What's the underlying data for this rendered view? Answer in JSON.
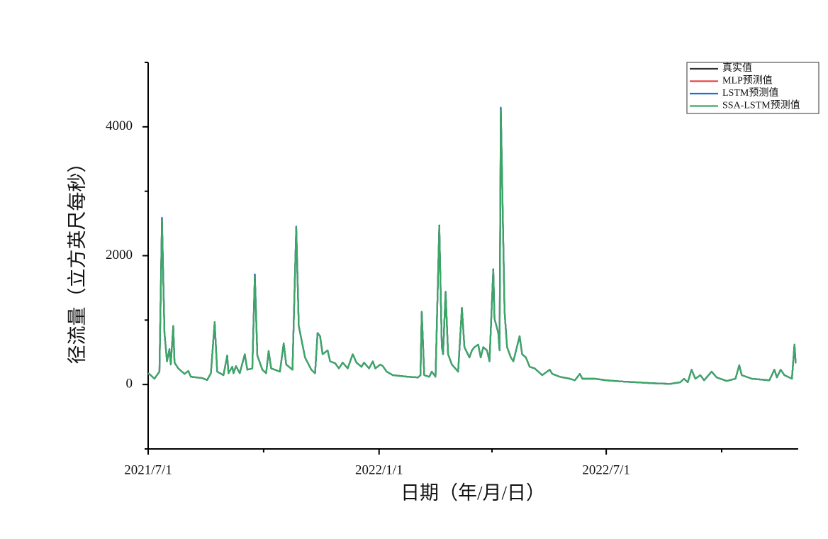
{
  "chart_data": {
    "type": "line",
    "x_label": "日期（年/月/日）",
    "y_label": "径流量（立方英尺每秒）",
    "x": [
      "2021/7/1",
      "2021/7/3",
      "2021/7/6",
      "2021/7/8",
      "2021/7/10",
      "2021/7/12",
      "2021/7/14",
      "2021/7/16",
      "2021/7/18",
      "2021/7/19",
      "2021/7/21",
      "2021/7/22",
      "2021/7/25",
      "2021/7/30",
      "2021/8/2",
      "2021/8/4",
      "2021/8/13",
      "2021/8/17",
      "2021/8/20",
      "2021/8/23",
      "2021/8/25",
      "2021/8/30",
      "2021/9/2",
      "2021/9/3",
      "2021/9/6",
      "2021/9/7",
      "2021/9/9",
      "2021/9/12",
      "2021/9/16",
      "2021/9/18",
      "2021/9/22",
      "2021/9/24",
      "2021/9/26",
      "2021/9/30",
      "2021/10/3",
      "2021/10/5",
      "2021/10/7",
      "2021/10/14",
      "2021/10/17",
      "2021/10/19",
      "2021/10/24",
      "2021/10/27",
      "2021/10/29",
      "2021/11/3",
      "2021/11/8",
      "2021/11/11",
      "2021/11/13",
      "2021/11/15",
      "2021/11/17",
      "2021/11/21",
      "2021/11/23",
      "2021/11/27",
      "2021/11/30",
      "2021/12/3",
      "2021/12/7",
      "2021/12/11",
      "2021/12/14",
      "2021/12/18",
      "2021/12/20",
      "2021/12/24",
      "2021/12/27",
      "2021/12/29",
      "2022/1/2",
      "2022/1/4",
      "2022/1/7",
      "2022/1/12",
      "2022/1/24",
      "2022/2/1",
      "2022/2/3",
      "2022/2/4",
      "2022/2/6",
      "2022/2/10",
      "2022/2/12",
      "2022/2/15",
      "2022/2/18",
      "2022/2/20",
      "2022/2/21",
      "2022/2/23",
      "2022/2/25",
      "2022/2/28",
      "2022/3/5",
      "2022/3/8",
      "2022/3/10",
      "2022/3/14",
      "2022/3/16",
      "2022/3/18",
      "2022/3/21",
      "2022/3/23",
      "2022/3/25",
      "2022/3/28",
      "2022/3/30",
      "2022/4/2",
      "2022/4/3",
      "2022/4/6",
      "2022/4/7",
      "2022/4/8",
      "2022/4/11",
      "2022/4/13",
      "2022/4/16",
      "2022/4/18",
      "2022/4/23",
      "2022/4/25",
      "2022/4/28",
      "2022/5/1",
      "2022/5/5",
      "2022/5/11",
      "2022/5/17",
      "2022/5/19",
      "2022/5/25",
      "2022/6/2",
      "2022/6/6",
      "2022/6/10",
      "2022/6/12",
      "2022/6/22",
      "2022/7/1",
      "2022/7/15",
      "2022/8/7",
      "2022/8/21",
      "2022/8/29",
      "2022/9/1",
      "2022/9/4",
      "2022/9/7",
      "2022/9/10",
      "2022/9/14",
      "2022/9/17",
      "2022/9/23",
      "2022/9/27",
      "2022/10/5",
      "2022/10/12",
      "2022/10/15",
      "2022/10/17",
      "2022/10/25",
      "2022/11/8",
      "2022/11/12",
      "2022/11/14",
      "2022/11/17",
      "2022/11/20",
      "2022/11/26",
      "2022/11/28",
      "2022/11/29"
    ],
    "series": [
      {
        "name": "真实值",
        "color": "#333333",
        "values": [
          175,
          145,
          90,
          145,
          200,
          2580,
          800,
          360,
          550,
          310,
          910,
          340,
          250,
          165,
          210,
          120,
          100,
          70,
          175,
          970,
          200,
          145,
          450,
          175,
          275,
          175,
          285,
          175,
          470,
          230,
          250,
          1710,
          450,
          230,
          175,
          520,
          250,
          200,
          640,
          310,
          230,
          2450,
          910,
          420,
          230,
          175,
          800,
          750,
          470,
          530,
          360,
          330,
          250,
          340,
          250,
          470,
          340,
          275,
          340,
          250,
          360,
          250,
          310,
          285,
          200,
          145,
          120,
          110,
          145,
          1130,
          145,
          120,
          200,
          120,
          2470,
          580,
          470,
          1440,
          470,
          310,
          200,
          1190,
          580,
          420,
          530,
          580,
          620,
          420,
          580,
          530,
          360,
          1790,
          1020,
          800,
          530,
          4290,
          1130,
          580,
          420,
          360,
          750,
          470,
          420,
          275,
          250,
          145,
          230,
          165,
          120,
          90,
          65,
          165,
          90,
          90,
          65,
          45,
          20,
          10,
          35,
          90,
          35,
          230,
          90,
          145,
          65,
          200,
          110,
          55,
          90,
          300,
          145,
          90,
          65,
          230,
          110,
          230,
          145,
          90,
          620,
          330
        ]
      },
      {
        "name": "MLP预测值",
        "color": "#e8413a",
        "values": [
          175,
          145,
          90,
          145,
          200,
          2570,
          800,
          360,
          550,
          310,
          910,
          340,
          250,
          165,
          210,
          120,
          100,
          70,
          175,
          970,
          200,
          145,
          450,
          175,
          275,
          175,
          285,
          175,
          470,
          230,
          250,
          1710,
          450,
          230,
          175,
          520,
          250,
          200,
          640,
          310,
          230,
          2450,
          910,
          420,
          230,
          175,
          800,
          750,
          470,
          530,
          360,
          330,
          250,
          340,
          250,
          470,
          340,
          275,
          340,
          250,
          360,
          250,
          310,
          285,
          200,
          145,
          120,
          110,
          145,
          1130,
          145,
          120,
          200,
          120,
          2470,
          580,
          470,
          1440,
          470,
          310,
          200,
          1190,
          580,
          420,
          530,
          580,
          620,
          420,
          580,
          530,
          360,
          1790,
          1020,
          800,
          530,
          4290,
          1130,
          580,
          420,
          360,
          750,
          470,
          420,
          275,
          250,
          145,
          230,
          165,
          120,
          90,
          65,
          165,
          90,
          90,
          65,
          45,
          20,
          10,
          35,
          90,
          35,
          230,
          90,
          145,
          65,
          200,
          110,
          55,
          90,
          300,
          145,
          90,
          65,
          230,
          110,
          230,
          145,
          90,
          620,
          330
        ]
      },
      {
        "name": "LSTM预测值",
        "color": "#1f6fd1",
        "values": [
          175,
          145,
          90,
          145,
          200,
          2590,
          800,
          360,
          550,
          310,
          910,
          340,
          250,
          165,
          210,
          120,
          100,
          70,
          175,
          970,
          200,
          145,
          450,
          175,
          275,
          175,
          285,
          175,
          470,
          230,
          250,
          1710,
          450,
          230,
          175,
          520,
          250,
          200,
          640,
          310,
          230,
          2450,
          910,
          420,
          230,
          175,
          800,
          750,
          470,
          530,
          360,
          330,
          250,
          340,
          250,
          470,
          340,
          275,
          340,
          250,
          360,
          250,
          310,
          285,
          200,
          145,
          120,
          110,
          145,
          1130,
          145,
          120,
          200,
          120,
          2470,
          580,
          470,
          1440,
          470,
          310,
          200,
          1190,
          580,
          420,
          530,
          580,
          620,
          420,
          580,
          530,
          360,
          1790,
          1020,
          800,
          530,
          4300,
          1130,
          580,
          420,
          360,
          750,
          470,
          420,
          275,
          250,
          145,
          230,
          165,
          120,
          90,
          65,
          165,
          90,
          90,
          65,
          45,
          20,
          10,
          35,
          90,
          35,
          230,
          90,
          145,
          65,
          200,
          110,
          55,
          90,
          300,
          145,
          90,
          65,
          230,
          110,
          230,
          145,
          90,
          620,
          330
        ]
      },
      {
        "name": "SSA-LSTM预测值",
        "color": "#3aa865",
        "values": [
          175,
          145,
          90,
          145,
          200,
          2550,
          800,
          360,
          550,
          310,
          910,
          340,
          250,
          165,
          210,
          120,
          100,
          70,
          175,
          970,
          200,
          145,
          450,
          175,
          275,
          175,
          285,
          175,
          470,
          230,
          250,
          1680,
          450,
          230,
          175,
          520,
          250,
          200,
          640,
          310,
          230,
          2440,
          910,
          420,
          230,
          175,
          800,
          750,
          470,
          530,
          360,
          330,
          250,
          340,
          250,
          470,
          340,
          275,
          340,
          250,
          360,
          250,
          310,
          285,
          200,
          145,
          120,
          110,
          145,
          1130,
          145,
          120,
          200,
          120,
          2455,
          580,
          470,
          1440,
          470,
          310,
          200,
          1190,
          580,
          420,
          530,
          580,
          620,
          420,
          580,
          530,
          360,
          1770,
          1020,
          800,
          530,
          4260,
          1130,
          580,
          420,
          360,
          750,
          470,
          420,
          275,
          250,
          145,
          230,
          165,
          120,
          90,
          65,
          165,
          90,
          90,
          65,
          45,
          20,
          10,
          35,
          90,
          35,
          230,
          90,
          145,
          65,
          200,
          110,
          55,
          90,
          300,
          145,
          90,
          65,
          230,
          110,
          230,
          145,
          90,
          620,
          330
        ]
      }
    ],
    "xlim": [
      "2021/7/1",
      "2022/12/1"
    ],
    "xticks": [
      "2021/7/1",
      "2022/1/1",
      "2022/7/1"
    ],
    "xminor_ticks": [
      "2021/10/1",
      "2022/4/1",
      "2022/10/1"
    ],
    "ylim": [
      -1000,
      5000
    ],
    "yticks": [
      0,
      2000,
      4000
    ],
    "yminor_ticks": [
      -1000,
      1000,
      3000,
      5000
    ],
    "legend": "upper right"
  }
}
